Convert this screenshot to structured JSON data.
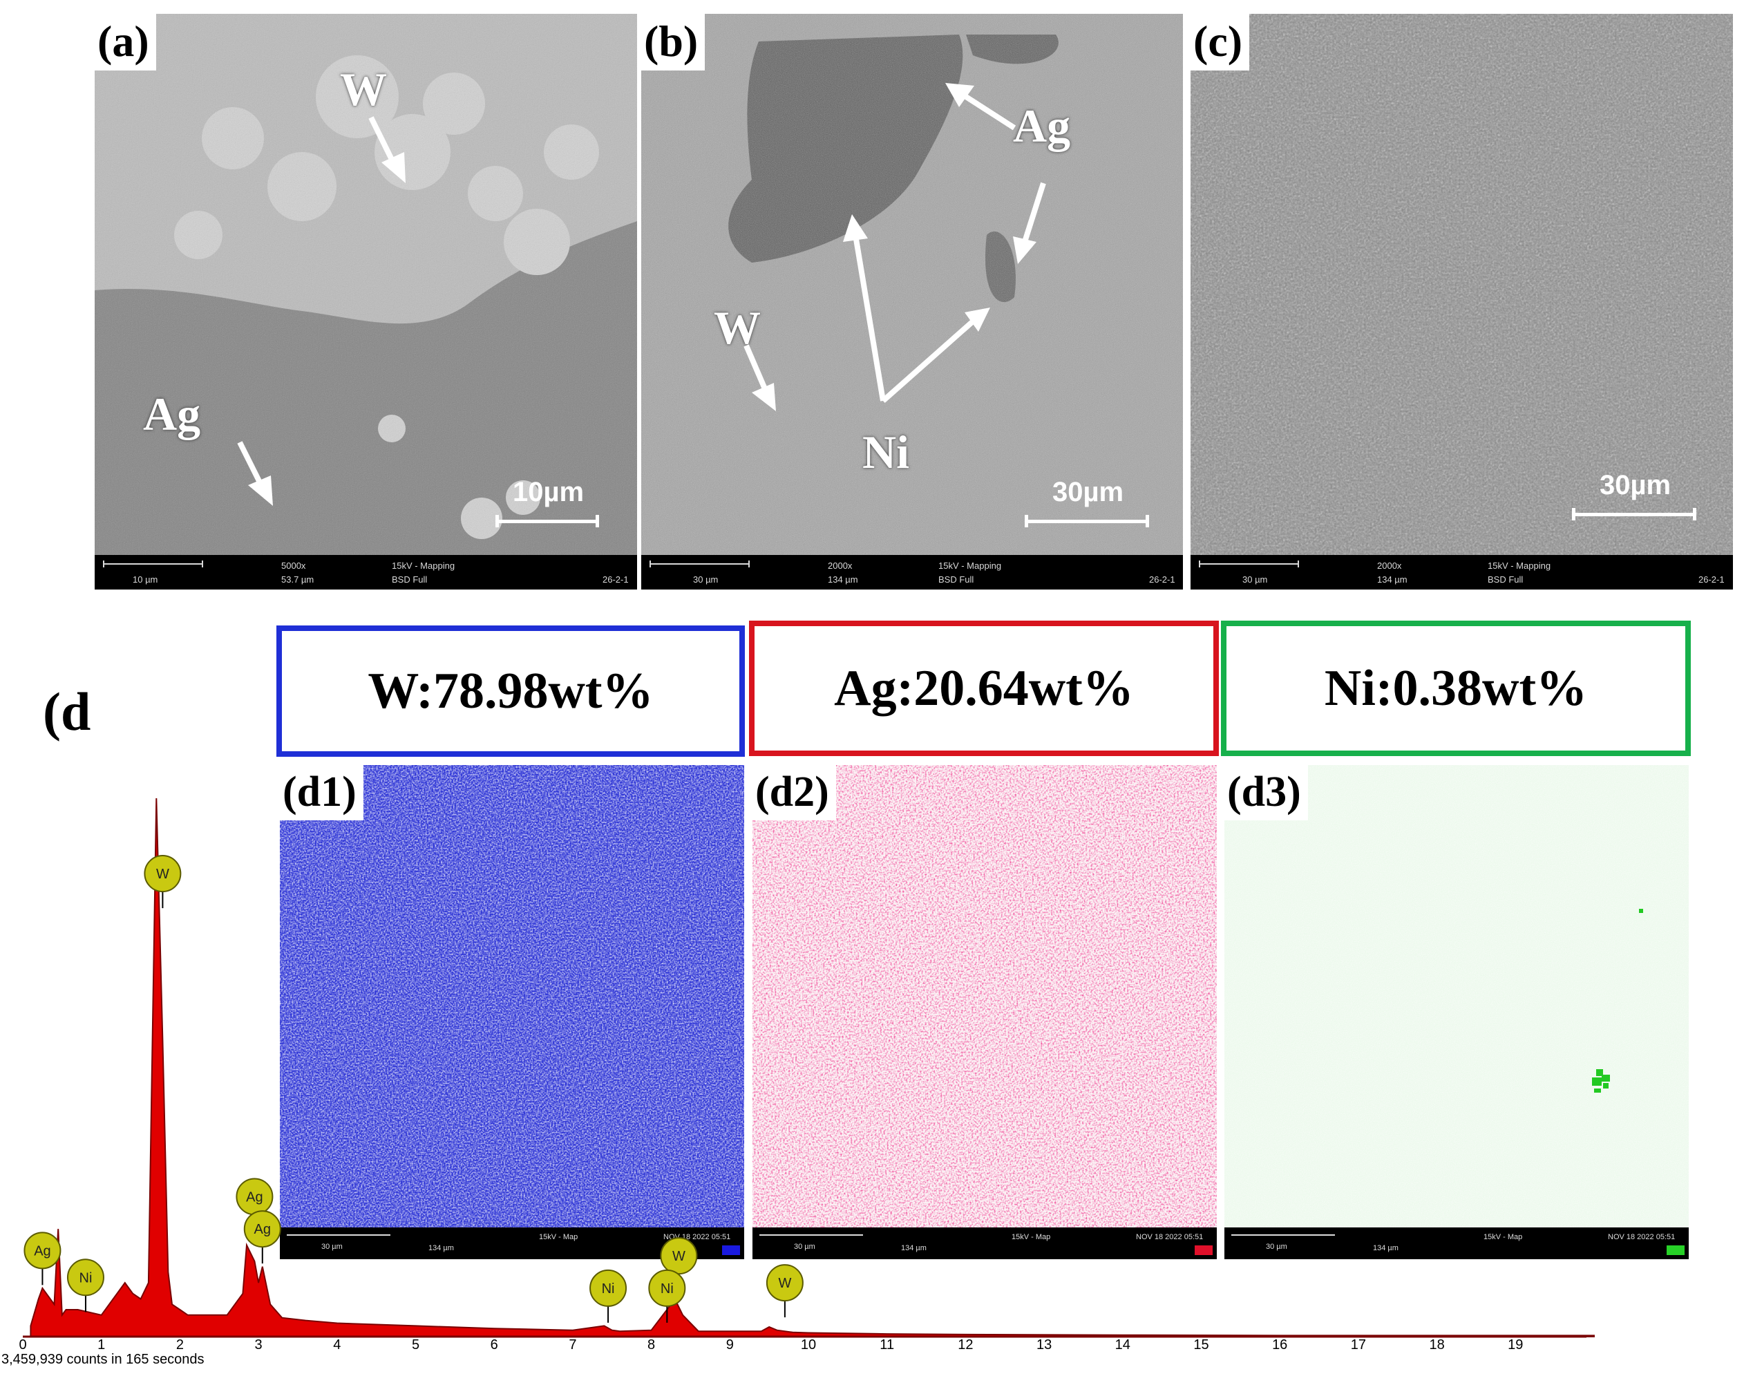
{
  "figure": {
    "sem_panels": [
      {
        "label": "(a)",
        "scale": "10µm",
        "info": {
          "bar": "10 µm",
          "mag": "5000x",
          "fov": "53.7 µm",
          "kv": "15kV - Mapping",
          "det": "BSD Full",
          "id": "26-2-1"
        }
      },
      {
        "label": "(b)",
        "scale": "30µm",
        "info": {
          "bar": "30 µm",
          "mag": "2000x",
          "fov": "134 µm",
          "kv": "15kV - Mapping",
          "det": "BSD Full",
          "id": "26-2-1"
        }
      },
      {
        "label": "(c)",
        "scale": "30µm",
        "info": {
          "bar": "30 µm",
          "mag": "2000x",
          "fov": "134 µm",
          "kv": "15kV - Mapping",
          "det": "BSD Full",
          "id": "26-2-1"
        }
      }
    ],
    "annotations": {
      "a_w": "W",
      "a_ag": "Ag",
      "b_ag": "Ag",
      "b_w": "W",
      "b_ni": "Ni"
    },
    "label_d": "(d",
    "composition": [
      {
        "text": "W:78.98wt%",
        "color": "#1f2fd6"
      },
      {
        "text": "Ag:20.64wt%",
        "color": "#d8141e"
      },
      {
        "text": "Ni:0.38wt%",
        "color": "#17b04b"
      }
    ],
    "maps": [
      {
        "label": "(d1)",
        "color": "#2b2bd8",
        "chip": "#1a1ae0",
        "bar": "30 µm",
        "fov": "134 µm",
        "kv": "15kV - Map",
        "date": "NOV 18 2022 05:51"
      },
      {
        "label": "(d2)",
        "color": "#e0104a",
        "chip": "#e0102a",
        "bar": "30 µm",
        "fov": "134 µm",
        "kv": "15kV - Map",
        "date": "NOV 18 2022 05:51"
      },
      {
        "label": "(d3)",
        "color": "#27d127",
        "chip": "#27d127",
        "bar": "30 µm",
        "fov": "134 µm",
        "kv": "15kV - Map",
        "date": "NOV 18 2022 05:51"
      }
    ],
    "spectrum_caption": "3,459,939 counts in 165 seconds"
  },
  "chart_data": {
    "type": "area",
    "title": "",
    "xlabel": "",
    "ylabel": "",
    "xlim": [
      0,
      20
    ],
    "x_ticks": [
      "0",
      "1",
      "2",
      "3",
      "4",
      "5",
      "6",
      "7",
      "8",
      "9",
      "10",
      "11",
      "12",
      "13",
      "14",
      "15",
      "16",
      "17",
      "18",
      "19"
    ],
    "fill_color": "#e00000",
    "series": [
      {
        "x": [
          0.1,
          0.2,
          0.25,
          0.3,
          0.4,
          0.45,
          0.5,
          0.55,
          0.7,
          1.0,
          1.2,
          1.3,
          1.4,
          1.5,
          1.6,
          1.7,
          1.78,
          1.85,
          1.9,
          2.0,
          2.1,
          2.3,
          2.6,
          2.8,
          2.85,
          2.95,
          3.0,
          3.05,
          3.15,
          3.3,
          3.6,
          4.0,
          5.0,
          6.0,
          7.0,
          7.4,
          7.5,
          7.6,
          8.0,
          8.2,
          8.3,
          8.4,
          8.6,
          9.0,
          9.4,
          9.5,
          9.6,
          9.8,
          10.0,
          11.0,
          12.0,
          14.0,
          16.0,
          18.0,
          20.0
        ],
        "y": [
          0.02,
          0.07,
          0.09,
          0.08,
          0.06,
          0.2,
          0.04,
          0.05,
          0.05,
          0.04,
          0.08,
          0.1,
          0.08,
          0.07,
          0.1,
          1.0,
          0.55,
          0.12,
          0.06,
          0.05,
          0.04,
          0.04,
          0.04,
          0.08,
          0.17,
          0.14,
          0.1,
          0.13,
          0.06,
          0.035,
          0.03,
          0.025,
          0.02,
          0.015,
          0.012,
          0.02,
          0.012,
          0.01,
          0.012,
          0.05,
          0.07,
          0.04,
          0.01,
          0.01,
          0.01,
          0.018,
          0.012,
          0.008,
          0.007,
          0.005,
          0.004,
          0.003,
          0.002,
          0.002,
          0.002
        ]
      }
    ],
    "peak_labels": [
      {
        "text": "W",
        "x": 1.78,
        "level": 1.16
      },
      {
        "text": "W",
        "x": 1.78,
        "level": 0.86
      },
      {
        "text": "Ag",
        "x": 2.95,
        "level": 0.26
      },
      {
        "text": "Ag",
        "x": 3.05,
        "level": 0.2
      },
      {
        "text": "Ag",
        "x": 0.25,
        "level": 0.16
      },
      {
        "text": "Ni",
        "x": 0.8,
        "level": 0.11
      },
      {
        "text": "Ni",
        "x": 7.45,
        "level": 0.09
      },
      {
        "text": "W",
        "x": 8.35,
        "level": 0.15
      },
      {
        "text": "Ni",
        "x": 8.2,
        "level": 0.09
      },
      {
        "text": "W",
        "x": 9.7,
        "level": 0.1
      }
    ]
  }
}
